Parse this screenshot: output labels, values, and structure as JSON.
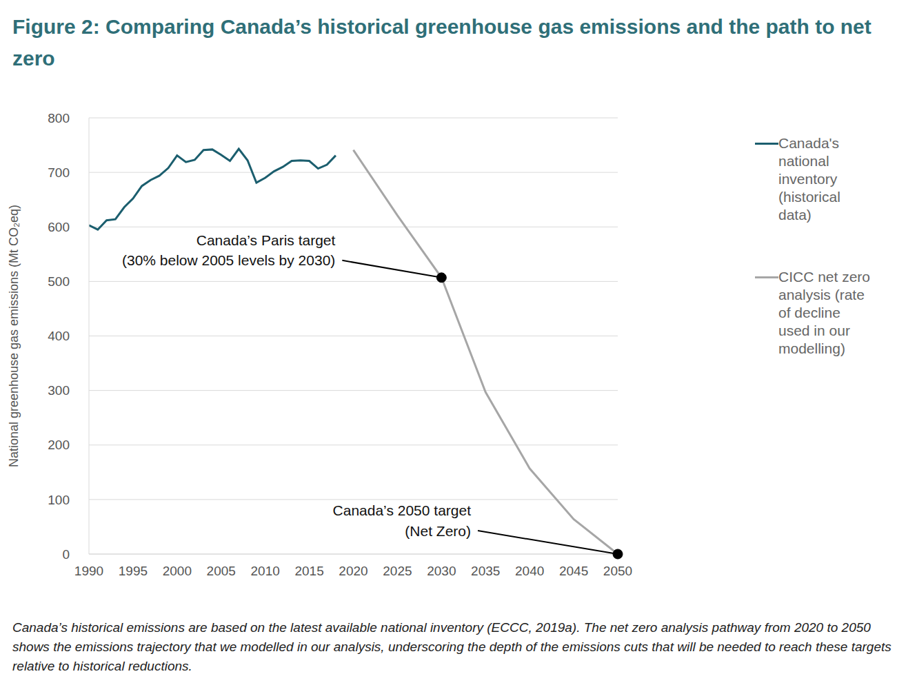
{
  "chart_data": {
    "type": "line",
    "title": "Figure 2: Comparing Canada’s historical greenhouse gas emissions and the path to net zero",
    "caption": "Canada’s historical emissions are based on the latest available national inventory (ECCC, 2019a). The net zero analysis pathway from 2020 to 2050 shows the emissions trajectory that we modelled in our analysis, underscoring the depth of the emissions cuts that will be needed to reach these targets relative to historical reductions.",
    "y_label": "National greenhouse gas emissions (Mt CO₂eq)",
    "xlim": [
      1990,
      2050
    ],
    "xticks": [
      1990,
      1995,
      2000,
      2005,
      2010,
      2015,
      2020,
      2025,
      2030,
      2035,
      2040,
      2045,
      2050
    ],
    "ylim": [
      0,
      800
    ],
    "yticks": [
      0,
      100,
      200,
      300,
      400,
      500,
      600,
      700,
      800
    ],
    "grid": true,
    "legend": "right",
    "series": [
      {
        "name": "Canada's national inventory (historical data)",
        "color": "#1b5e6e",
        "x": [
          1990,
          1991,
          1992,
          1993,
          1994,
          1995,
          1996,
          1997,
          1998,
          1999,
          2000,
          2001,
          2002,
          2003,
          2004,
          2005,
          2006,
          2007,
          2008,
          2009,
          2010,
          2011,
          2012,
          2013,
          2014,
          2015,
          2016,
          2017,
          2018
        ],
        "values": [
          603,
          595,
          612,
          614,
          636,
          652,
          675,
          686,
          694,
          708,
          731,
          719,
          723,
          741,
          742,
          732,
          721,
          743,
          722,
          681,
          690,
          702,
          710,
          721,
          722,
          721,
          707,
          714,
          731
        ]
      },
      {
        "name": "CICC net zero analysis (rate of decline used in our modelling)",
        "color": "#a6a6a6",
        "x": [
          2020,
          2025,
          2030,
          2035,
          2040,
          2045,
          2050
        ],
        "values": [
          741,
          621,
          507,
          297,
          157,
          64,
          0
        ]
      }
    ],
    "annotations": [
      {
        "text": [
          "Canada’s Paris target",
          "(30% below 2005 levels by 2030)"
        ],
        "x": 2030,
        "y": 507
      },
      {
        "text": [
          "Canada’s 2050 target",
          "(Net Zero)"
        ],
        "x": 2050,
        "y": 0
      }
    ]
  }
}
